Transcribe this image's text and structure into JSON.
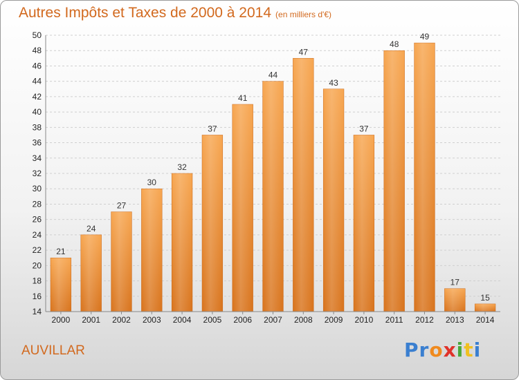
{
  "chart_data": {
    "type": "bar",
    "title": "Autres Impôts et Taxes de 2000 à 2014",
    "subtitle": "(en milliers d'€)",
    "categories": [
      "2000",
      "2001",
      "2002",
      "2003",
      "2004",
      "2005",
      "2006",
      "2007",
      "2008",
      "2009",
      "2010",
      "2011",
      "2012",
      "2013",
      "2014"
    ],
    "values": [
      21,
      24,
      27,
      30,
      32,
      37,
      41,
      44,
      47,
      43,
      37,
      48,
      49,
      17,
      15
    ],
    "ylim": [
      14,
      50
    ],
    "ytick_step": 2,
    "grid": true,
    "legend": "none",
    "bar_color": "#f0923a"
  },
  "footer": {
    "commune": "AUVILLAR",
    "logo": {
      "p1": "Pr",
      "p2": "o",
      "p3": "x",
      "p4": "i",
      "p5": "t",
      "p6": "i"
    }
  }
}
